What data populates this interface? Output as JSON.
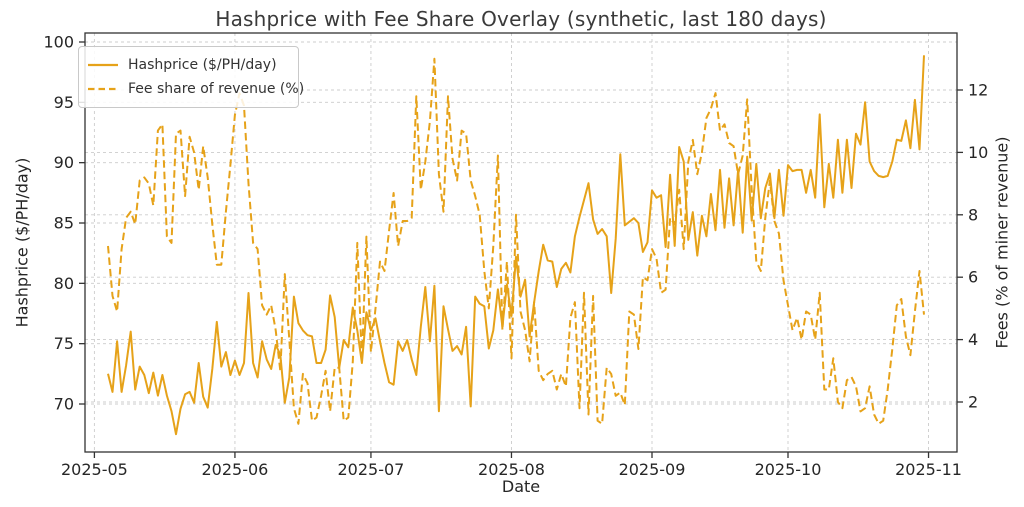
{
  "title": "Hashprice with Fee Share Overlay (synthetic, last 180 days)",
  "axes": {
    "x_label": "Date",
    "y_left_label": "Hashprice ($/PH/day)",
    "y_right_label": "Fees (% of miner revenue)",
    "x_tick_labels": [
      "2025-05",
      "2025-06",
      "2025-07",
      "2025-08",
      "2025-09",
      "2025-10",
      "2025-11"
    ],
    "y_left_ticks": [
      70,
      75,
      80,
      85,
      90,
      95,
      100
    ],
    "y_right_ticks": [
      2,
      4,
      6,
      8,
      10,
      12
    ],
    "grid": "both-axes, dashed light gray"
  },
  "legend": {
    "position": "upper-left",
    "items": [
      {
        "label": "Hashprice ($/PH/day)",
        "style": "solid"
      },
      {
        "label": "Fee share of revenue (%)",
        "style": "dashed"
      }
    ]
  },
  "colors": {
    "series": "#E6A219",
    "grid": "#cccccc",
    "spine": "#333333",
    "tick_text": "#262626",
    "title_text": "#3a3a3a"
  },
  "chart_data": {
    "type": "line",
    "title": "Hashprice with Fee Share Overlay (synthetic, last 180 days)",
    "xlabel": "Date",
    "x_start_date": "2025-05-04",
    "x_end_date": "2025-10-31",
    "x_frequency": "daily",
    "n_points": 181,
    "x_tick_labels": [
      "2025-05",
      "2025-06",
      "2025-07",
      "2025-08",
      "2025-09",
      "2025-10",
      "2025-11"
    ],
    "y_left": {
      "label": "Hashprice ($/PH/day)",
      "range": [
        67,
        100.8
      ],
      "ticks": [
        70,
        75,
        80,
        85,
        90,
        95,
        100
      ]
    },
    "y_right": {
      "label": "Fees (% of miner revenue)",
      "range": [
        0.4,
        13.8
      ],
      "ticks": [
        2,
        4,
        6,
        8,
        10,
        12
      ]
    },
    "series": [
      {
        "name": "Hashprice ($/PH/day)",
        "axis": "left",
        "style": "solid",
        "values": [
          72.5,
          71.0,
          75.2,
          71.0,
          73.2,
          76.0,
          71.2,
          73.1,
          72.4,
          70.9,
          72.6,
          70.7,
          72.4,
          70.7,
          69.4,
          67.5,
          69.6,
          70.8,
          71.0,
          70.1,
          73.4,
          70.6,
          69.7,
          72.9,
          76.8,
          73.1,
          74.3,
          72.4,
          73.6,
          72.4,
          73.4,
          79.2,
          73.4,
          72.2,
          75.2,
          73.7,
          72.9,
          74.9,
          74.1,
          70.1,
          72.2,
          78.9,
          76.7,
          76.1,
          75.7,
          75.6,
          73.4,
          73.4,
          74.5,
          79.0,
          77.2,
          73.0,
          75.3,
          74.7,
          78.0,
          76.1,
          73.4,
          77.6,
          76.1,
          77.1,
          75.2,
          73.4,
          71.8,
          71.6,
          75.2,
          74.4,
          75.3,
          73.7,
          72.4,
          76.4,
          79.7,
          75.2,
          79.8,
          69.4,
          78.1,
          76.2,
          74.4,
          74.8,
          74.1,
          76.4,
          69.8,
          78.9,
          78.3,
          78.1,
          74.6,
          76.1,
          79.5,
          76.4,
          79.9,
          77.3,
          82.2,
          78.9,
          80.3,
          75.6,
          78.4,
          81.0,
          83.2,
          81.9,
          81.8,
          79.7,
          81.2,
          81.7,
          80.9,
          83.9,
          85.5,
          86.9,
          88.3,
          85.3,
          84.1,
          84.5,
          83.9,
          79.2,
          83.7,
          90.7,
          84.8,
          85.1,
          85.4,
          85.0,
          82.6,
          83.4,
          87.7,
          87.1,
          87.3,
          83.0,
          89.0,
          83.1,
          91.3,
          90.1,
          83.6,
          85.9,
          82.3,
          85.6,
          83.9,
          87.4,
          84.4,
          89.4,
          84.6,
          88.7,
          84.8,
          89.4,
          84.2,
          90.5,
          85.2,
          89.9,
          85.4,
          87.9,
          89.1,
          85.4,
          89.4,
          85.6,
          89.8,
          89.3,
          89.4,
          89.4,
          87.5,
          89.4,
          87.1,
          94.0,
          86.3,
          89.9,
          87.1,
          91.9,
          87.5,
          91.9,
          87.9,
          92.4,
          91.5,
          95.0,
          90.1,
          89.3,
          88.9,
          88.8,
          88.9,
          90.1,
          91.9,
          91.8,
          93.5,
          91.2,
          95.2,
          91.1,
          98.9
        ]
      },
      {
        "name": "Fee share of revenue (%)",
        "axis": "right",
        "style": "dashed",
        "values": [
          7.0,
          5.4,
          4.9,
          6.9,
          7.9,
          8.1,
          7.7,
          9.1,
          9.2,
          9.0,
          8.3,
          10.7,
          10.9,
          7.3,
          7.1,
          10.6,
          10.7,
          8.6,
          10.5,
          10.0,
          8.8,
          10.2,
          9.2,
          7.7,
          6.4,
          6.4,
          8.1,
          9.6,
          11.2,
          11.9,
          11.5,
          9.0,
          7.1,
          6.9,
          5.1,
          4.8,
          5.1,
          4.3,
          3.0,
          6.1,
          4.0,
          1.8,
          1.3,
          2.9,
          2.6,
          1.4,
          1.5,
          2.2,
          3.0,
          1.7,
          3.1,
          3.1,
          1.4,
          1.5,
          3.3,
          7.1,
          3.3,
          7.3,
          3.6,
          5.0,
          6.5,
          6.2,
          7.5,
          8.7,
          7.0,
          7.8,
          7.8,
          7.9,
          11.8,
          8.8,
          9.7,
          11.0,
          13.0,
          9.3,
          8.1,
          11.8,
          9.8,
          9.1,
          10.7,
          10.6,
          9.1,
          8.6,
          8.0,
          6.2,
          5.0,
          7.0,
          9.9,
          4.3,
          6.5,
          3.4,
          8.0,
          4.9,
          4.3,
          3.3,
          5.2,
          3.0,
          2.7,
          2.9,
          3.0,
          2.4,
          2.9,
          2.5,
          4.7,
          5.2,
          1.8,
          5.5,
          1.6,
          5.4,
          1.4,
          1.3,
          3.1,
          2.9,
          2.2,
          2.3,
          1.9,
          4.9,
          4.8,
          3.7,
          6.0,
          5.9,
          6.9,
          6.6,
          5.5,
          5.6,
          7.9,
          7.7,
          8.8,
          6.9,
          9.7,
          10.4,
          9.3,
          10.0,
          11.1,
          11.4,
          11.9,
          10.7,
          10.9,
          10.3,
          10.2,
          9.3,
          9.9,
          11.7,
          8.8,
          6.5,
          6.2,
          7.9,
          9.1,
          7.8,
          7.4,
          5.9,
          5.1,
          4.3,
          4.7,
          4.0,
          4.9,
          4.8,
          4.0,
          5.5,
          2.4,
          2.4,
          3.4,
          2.0,
          1.8,
          2.7,
          2.8,
          2.5,
          1.7,
          1.8,
          2.5,
          1.6,
          1.3,
          1.4,
          2.4,
          3.7,
          5.1,
          5.3,
          4.1,
          3.5,
          4.9,
          6.2,
          4.8
        ]
      }
    ]
  }
}
